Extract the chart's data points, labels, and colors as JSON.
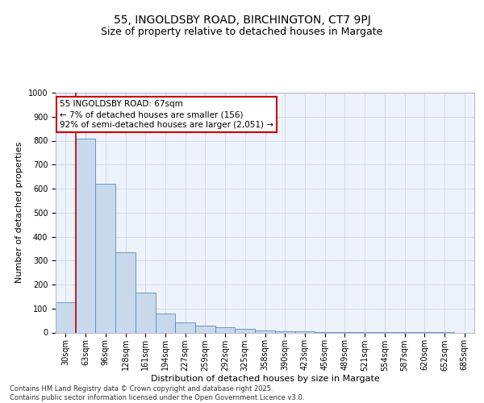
{
  "title": "55, INGOLDSBY ROAD, BIRCHINGTON, CT7 9PJ",
  "subtitle": "Size of property relative to detached houses in Margate",
  "xlabel": "Distribution of detached houses by size in Margate",
  "ylabel": "Number of detached properties",
  "bar_color": "#c9d9ec",
  "bar_edge_color": "#5a8abf",
  "grid_color": "#c8d8ea",
  "background_color": "#eef2fa",
  "bins": [
    "30sqm",
    "63sqm",
    "96sqm",
    "128sqm",
    "161sqm",
    "194sqm",
    "227sqm",
    "259sqm",
    "292sqm",
    "325sqm",
    "358sqm",
    "390sqm",
    "423sqm",
    "456sqm",
    "489sqm",
    "521sqm",
    "554sqm",
    "587sqm",
    "620sqm",
    "652sqm",
    "685sqm"
  ],
  "values": [
    125,
    810,
    620,
    335,
    165,
    80,
    42,
    28,
    22,
    15,
    8,
    5,
    4,
    3,
    2,
    2,
    1,
    1,
    1,
    1,
    0
  ],
  "ylim": [
    0,
    1000
  ],
  "yticks": [
    0,
    100,
    200,
    300,
    400,
    500,
    600,
    700,
    800,
    900,
    1000
  ],
  "annotation_text": "55 INGOLDSBY ROAD: 67sqm\n← 7% of detached houses are smaller (156)\n92% of semi-detached houses are larger (2,051) →",
  "annotation_box_color": "#ffffff",
  "annotation_box_edge": "#cc0000",
  "vline_x_idx": 1,
  "vline_color": "#cc0000",
  "footer_text": "Contains HM Land Registry data © Crown copyright and database right 2025.\nContains public sector information licensed under the Open Government Licence v3.0.",
  "title_fontsize": 10,
  "subtitle_fontsize": 9,
  "axis_label_fontsize": 8,
  "tick_fontsize": 7,
  "annotation_fontsize": 7.5,
  "footer_fontsize": 6
}
